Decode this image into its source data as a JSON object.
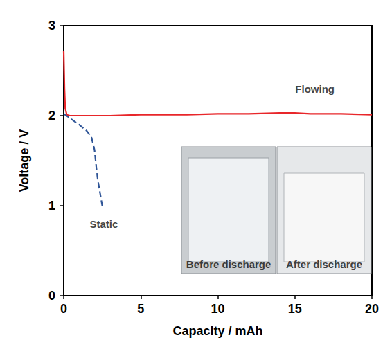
{
  "chart_data": {
    "type": "line",
    "xlabel": "Capacity / mAh",
    "ylabel": "Voltage / V",
    "xlim": [
      0,
      20
    ],
    "ylim": [
      0,
      3
    ],
    "xticks": [
      0,
      5,
      10,
      15,
      20
    ],
    "yticks": [
      0,
      1,
      2,
      3
    ],
    "grid": false,
    "series": [
      {
        "name": "Flowing",
        "color": "#e8262a",
        "line_style": "solid",
        "x": [
          0,
          0.05,
          0.1,
          0.2,
          0.4,
          1,
          3,
          5,
          8,
          10,
          12,
          14,
          15,
          16,
          18,
          20
        ],
        "values": [
          2.72,
          2.3,
          2.08,
          2.01,
          2.0,
          2.0,
          2.0,
          2.01,
          2.01,
          2.02,
          2.02,
          2.03,
          2.03,
          2.02,
          2.02,
          2.01
        ]
      },
      {
        "name": "Static",
        "color": "#2f5597",
        "line_style": "dashed",
        "x": [
          0,
          0.5,
          1,
          1.5,
          1.8,
          2,
          2.1,
          2.2,
          2.3,
          2.5
        ],
        "values": [
          2.02,
          1.96,
          1.9,
          1.83,
          1.76,
          1.62,
          1.45,
          1.3,
          1.2,
          1.0
        ]
      }
    ],
    "annotations": [
      {
        "text": "Flowing",
        "x": 16.3,
        "y": 2.3
      },
      {
        "text": "Static",
        "x": 2.6,
        "y": 0.8
      },
      {
        "text": "Before discharge",
        "x": 10.7,
        "y": 0.35
      },
      {
        "text": "After discharge",
        "x": 16.9,
        "y": 0.35
      }
    ]
  }
}
